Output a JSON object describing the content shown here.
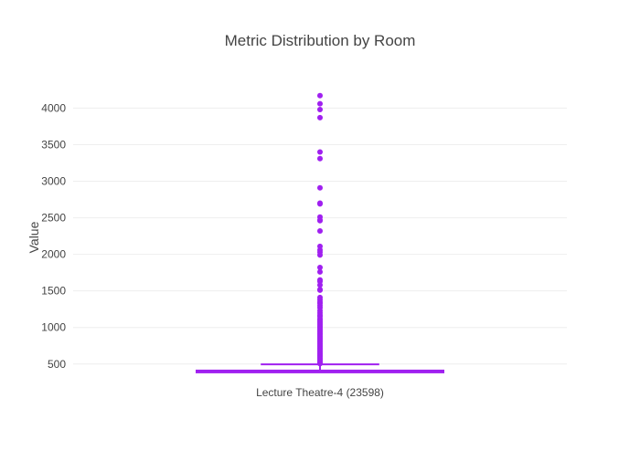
{
  "chart_data": {
    "type": "box",
    "title": "Metric Distribution by Room",
    "xlabel": "",
    "ylabel": "Value",
    "ylim": [
      360,
      4230
    ],
    "yticks": [
      500,
      1000,
      1500,
      2000,
      2500,
      3000,
      3500,
      4000
    ],
    "grid": true,
    "legend": "none",
    "color": "#a020f0",
    "categories": [
      "Lecture Theatre-4 (23598)"
    ],
    "boxes": [
      {
        "category": "Lecture Theatre-4 (23598)",
        "lower_fence": 397,
        "q1": 398,
        "median": 402,
        "q3": 411,
        "upper_fence": 496,
        "outliers": [
          4170,
          4060,
          3980,
          3870,
          3400,
          3310,
          2910,
          2700,
          2690,
          2510,
          2470,
          2460,
          2320,
          2110,
          2060,
          2030,
          1990,
          1820,
          1760,
          1650,
          1630,
          1580,
          1520,
          1510,
          1410,
          1380,
          1350,
          1330,
          1300,
          1270,
          1230,
          1200,
          1170,
          1150,
          1120,
          1100,
          1080,
          1060,
          1040,
          1020,
          1000,
          980,
          960,
          940,
          920,
          900,
          880,
          860,
          840,
          820,
          800,
          780,
          760,
          740,
          720,
          700,
          680,
          660,
          640,
          620,
          600,
          580,
          560,
          540,
          520,
          505
        ]
      }
    ]
  }
}
